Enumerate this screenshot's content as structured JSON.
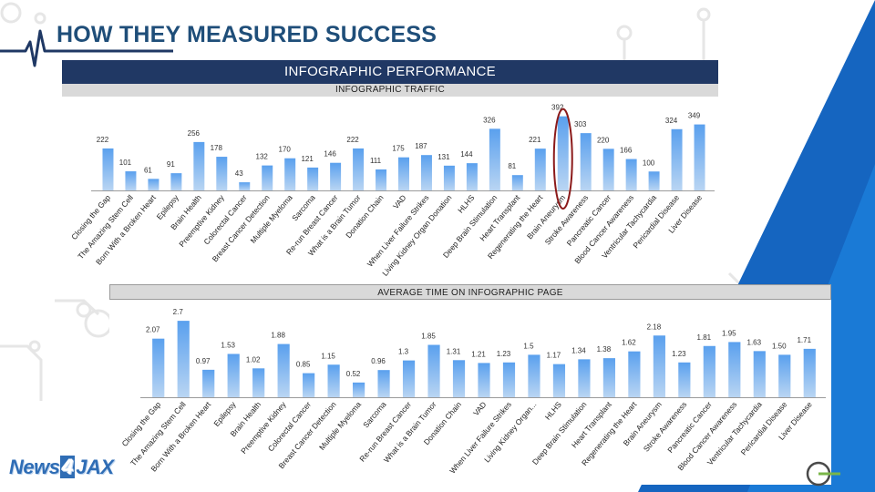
{
  "slide": {
    "title": "HOW THEY MEASURED SUCCESS",
    "colors": {
      "title": "#1f4e79",
      "banner": "#203864",
      "bar": "#4a90e2",
      "accent": "#1565c0",
      "highlight": "#8b1a1a"
    },
    "icons": [
      "heartbeat-line-icon",
      "circuit-node-icon"
    ]
  },
  "panels": {
    "traffic": {
      "banner": "INFOGRAPHIC PERFORMANCE",
      "subheader": "INFOGRAPHIC TRAFFIC"
    },
    "time": {
      "subheader": "AVERAGE TIME ON INFOGRAPHIC PAGE"
    }
  },
  "brand": {
    "text_a": "News",
    "text_b": "4",
    "text_c": "JAX"
  },
  "chart_data": [
    {
      "type": "bar",
      "title": "INFOGRAPHIC TRAFFIC",
      "categories": [
        "Closing the Gap",
        "The Amazing Stem Cell",
        "Born With a Broken Heart",
        "Epilepsy",
        "Brain Health",
        "Preemptive Kidney",
        "Colorectal Cancer",
        "Breast Cancer Detection",
        "Multiple Myeloma",
        "Sarcoma",
        "Re-run Breast Cancer",
        "What is a Brain Tumor",
        "Donation Chain",
        "VAD",
        "When Liver Failure Strikes",
        "Living Kidney Organ Donation",
        "HLHS",
        "Deep Brain Stimulation",
        "Heart Transplant",
        "Regenerating the Heart",
        "Brain Aneurysm",
        "Stroke Awareness",
        "Pancreatic Cancer",
        "Blood Cancer Awareness",
        "Ventricular Tachycardia",
        "Pericardial Disease",
        "Liver Disease"
      ],
      "values": [
        222,
        101,
        61,
        91,
        256,
        178,
        43,
        132,
        170,
        121,
        146,
        222,
        111,
        175,
        187,
        131,
        144,
        326,
        81,
        221,
        392,
        303,
        220,
        166,
        100,
        324,
        349
      ],
      "value_labels": [
        "222",
        "101",
        "61",
        "91",
        "256",
        "178",
        "43",
        "132",
        "170",
        "121",
        "146",
        "222",
        "111",
        "175",
        "187",
        "131",
        "144",
        "326",
        "81",
        "221",
        "392",
        "303",
        "220",
        "166",
        "100",
        "324",
        "349"
      ],
      "highlight_index": 20,
      "highlight_color": "#8b1a1a",
      "ylim": [
        0,
        400
      ],
      "color": "#4a90e2",
      "grid": false,
      "legend": "none"
    },
    {
      "type": "bar",
      "title": "AVERAGE TIME ON INFOGRAPHIC PAGE",
      "categories": [
        "Closing the Gap",
        "The Amazing Stem Cell",
        "Born With a Broken Heart",
        "Epilepsy",
        "Brain Health",
        "Preemptive Kidney",
        "Colorectal Cancer",
        "Breast Cancer Detection",
        "Multiple Myeloma",
        "Sarcoma",
        "Re-run Breast Cancer",
        "What is a Brain Tumor",
        "Donation Chain",
        "VAD",
        "When Liver Failure Strikes",
        "Living Kidney Organ...",
        "HLHS",
        "Deep Brain Stimulation",
        "Heart Transplant",
        "Regenerating the Heart",
        "Brain Aneurysm",
        "Stroke Awareness",
        "Pancreatic Cancer",
        "Blood Cancer Awareness",
        "Ventricular Tachycardia",
        "Pericardial Disease",
        "Liver Disease"
      ],
      "values": [
        2.07,
        2.7,
        0.97,
        1.53,
        1.02,
        1.88,
        0.85,
        1.15,
        0.52,
        0.96,
        1.3,
        1.85,
        1.31,
        1.21,
        1.23,
        1.5,
        1.17,
        1.34,
        1.38,
        1.62,
        2.18,
        1.23,
        1.81,
        1.95,
        1.63,
        1.5,
        1.71
      ],
      "value_labels": [
        "2.07",
        "2.7",
        "0.97",
        "1.53",
        "1.02",
        "1.88",
        "0.85",
        "1.15",
        "0.52",
        "0.96",
        "1.3",
        "1.85",
        "1.31",
        "1.21",
        "1.23",
        "1.5",
        "1.17",
        "1.34",
        "1.38",
        "1.62",
        "2.18",
        "1.23",
        "1.81",
        "1.95",
        "1.63",
        "1.50",
        "1.71"
      ],
      "ylim": [
        0,
        2.8
      ],
      "color": "#4a90e2",
      "grid": false,
      "legend": "none"
    }
  ]
}
